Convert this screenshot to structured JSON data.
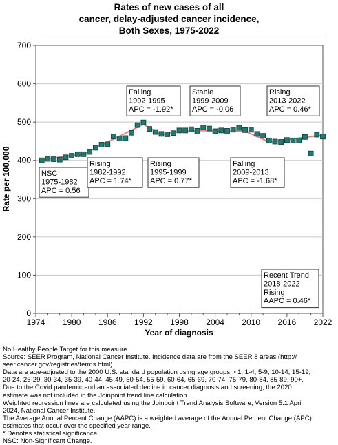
{
  "title_lines": [
    "Rates of new cases of all",
    "cancer, delay-adjusted cancer incidence,",
    "Both Sexes,  1975-2022"
  ],
  "chart_data": {
    "type": "scatter",
    "xlabel": "Year of diagnosis",
    "ylabel": "Rate per 100,000",
    "xlim": [
      1974,
      2022
    ],
    "ylim": [
      0,
      700
    ],
    "x_ticks": [
      1974,
      1980,
      1986,
      1992,
      1998,
      2004,
      2010,
      2016,
      2022
    ],
    "y_ticks": [
      0,
      100,
      200,
      300,
      400,
      500,
      600,
      700
    ],
    "grid": "horizontal",
    "colors": {
      "observed": "#1f7a70",
      "marker_edge": "#0d3d38",
      "trend": "#f08080"
    },
    "observed": {
      "x": [
        1975,
        1976,
        1977,
        1978,
        1979,
        1980,
        1981,
        1982,
        1983,
        1984,
        1985,
        1986,
        1987,
        1988,
        1989,
        1990,
        1991,
        1992,
        1993,
        1994,
        1995,
        1996,
        1997,
        1998,
        1999,
        2000,
        2001,
        2002,
        2003,
        2004,
        2005,
        2006,
        2007,
        2008,
        2009,
        2010,
        2011,
        2012,
        2013,
        2014,
        2015,
        2016,
        2017,
        2018,
        2019,
        2020,
        2021,
        2022
      ],
      "y": [
        400,
        404,
        403,
        402,
        408,
        412,
        416,
        416,
        422,
        433,
        441,
        442,
        462,
        457,
        458,
        472,
        492,
        499,
        482,
        474,
        469,
        468,
        471,
        478,
        478,
        481,
        477,
        486,
        483,
        476,
        478,
        477,
        480,
        485,
        479,
        480,
        469,
        464,
        452,
        449,
        448,
        453,
        452,
        452,
        461,
        418,
        467,
        462
      ]
    },
    "trend_segments": [
      {
        "x": [
          1975,
          1982
        ],
        "y": [
          401,
          417
        ]
      },
      {
        "x": [
          1982,
          1992
        ],
        "y": [
          417,
          494
        ]
      },
      {
        "x": [
          1992,
          1995
        ],
        "y": [
          494,
          467
        ]
      },
      {
        "x": [
          1995,
          1999
        ],
        "y": [
          467,
          478
        ]
      },
      {
        "x": [
          1999,
          2009
        ],
        "y": [
          478,
          476
        ]
      },
      {
        "x": [
          2009,
          2013
        ],
        "y": [
          476,
          448
        ]
      },
      {
        "x": [
          2013,
          2022
        ],
        "y": [
          448,
          466
        ]
      }
    ],
    "annotations": [
      {
        "lines": [
          "NSC",
          "1975-1982",
          "APC =  0.56"
        ]
      },
      {
        "lines": [
          "Rising",
          "1982-1992",
          "APC =  1.74*"
        ]
      },
      {
        "lines": [
          "Falling",
          "1992-1995",
          "APC = -1.92*"
        ]
      },
      {
        "lines": [
          "Rising",
          "1995-1999",
          "APC =  0.77*"
        ]
      },
      {
        "lines": [
          "Stable",
          "1999-2009",
          "APC = -0.06"
        ]
      },
      {
        "lines": [
          "Falling",
          "2009-2013",
          "APC = -1.68*"
        ]
      },
      {
        "lines": [
          "Rising",
          "2013-2022",
          "APC =  0.46*"
        ]
      },
      {
        "lines": [
          "Recent Trend",
          "2018-2022",
          "Rising",
          "AAPC =  0.46*"
        ]
      }
    ]
  },
  "footnotes": [
    "No Healthy People Target for this measure.",
    "Source: SEER Program, National Cancer Institute. Incidence data are from the SEER 8 areas (http://",
    "seer.cancer.gov/registries/terms.html).",
    "Data are age-adjusted to the 2000 U.S. standard population using age groups: <1, 1-4, 5-9, 10-14, 15-19,",
    "20-24, 25-29, 30-34, 35-39, 40-44, 45-49, 50-54, 55-59, 60-64, 65-69, 70-74, 75-79, 80-84, 85-89, 90+.",
    "Due to the Covid pandemic and an associated decline in cancer diagnosis and screening, the 2020",
    "estimate was not included in the Joinpoint trend line calculation.",
    "Weighted regression lines are calculated using the Joinpoint Trend Analysis Software, Version 5.1 April",
    "2024, National Cancer Institute.",
    "The Average Annual Percent Change (AAPC) is a weighted average of the Annual Percent Change (APC)",
    "estimates that occur over the specified year range.",
    "* Denotes statistical significance.",
    "NSC: Non-Significant Change."
  ]
}
